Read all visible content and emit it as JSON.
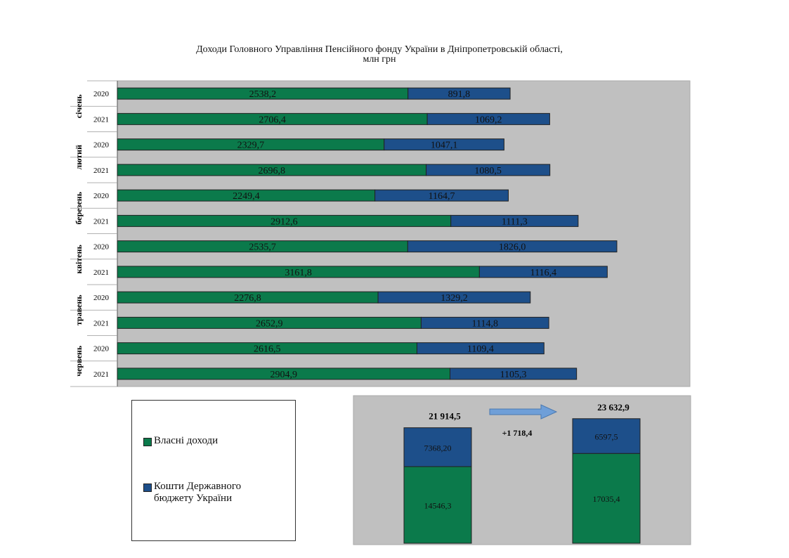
{
  "chart_data": [
    {
      "type": "bar",
      "orientation": "horizontal",
      "stacked": true,
      "title": "Доходи Головного Управління Пенсійного фонду України в Дніпропетровській області,",
      "subtitle": "млн грн",
      "months": [
        "січень",
        "лютий",
        "березень",
        "квітень",
        "травень",
        "червень"
      ],
      "years": [
        "2020",
        "2021"
      ],
      "xlim": [
        0,
        5000
      ],
      "grid": false,
      "colors": {
        "own": "#0b7a4b",
        "budget": "#1d4f8a",
        "plot_bg": "#c0c0c0"
      },
      "series": [
        {
          "name": "Власні доходи",
          "values": [
            2538.2,
            2706.4,
            2329.7,
            2696.8,
            2249.4,
            2912.6,
            2535.7,
            3161.8,
            2276.8,
            2652.9,
            2616.5,
            2904.9
          ],
          "labels": [
            "2538,2",
            "2706,4",
            "2329,7",
            "2696,8",
            "2249,4",
            "2912,6",
            "2535,7",
            "3161,8",
            "2276,8",
            "2652,9",
            "2616,5",
            "2904,9"
          ]
        },
        {
          "name": "Кошти Державного бюджету України",
          "values": [
            891.8,
            1069.2,
            1047.1,
            1080.5,
            1164.7,
            1111.3,
            1826.0,
            1116.4,
            1329.2,
            1114.8,
            1109.4,
            1105.3
          ],
          "labels": [
            "891,8",
            "1069,2",
            "1047,1",
            "1080,5",
            "1164,7",
            "1111,3",
            "1826,0",
            "1116,4",
            "1329,2",
            "1114,8",
            "1109,4",
            "1105,3"
          ]
        }
      ]
    },
    {
      "type": "bar",
      "stacked": true,
      "ylim": [
        0,
        28000
      ],
      "series": [
        {
          "name": "Власні доходи",
          "values": [
            14546.3,
            17035.4
          ],
          "labels": [
            "14546,3",
            "17035,4"
          ]
        },
        {
          "name": "Кошти Державного бюджету України",
          "values": [
            7368.2,
            6597.5
          ],
          "labels": [
            "7368,20",
            "6597,5"
          ]
        }
      ],
      "totals": [
        "21 914,5",
        "23 632,9"
      ],
      "difference": "+1 718,4",
      "arrow_color": "#6f9fd8"
    }
  ],
  "legend": {
    "items": [
      "Власні доходи",
      "Кошти Державного бюджету України"
    ],
    "lines": [
      [
        "Власні доходи"
      ],
      [
        "Кошти Державного",
        "бюджету України"
      ]
    ]
  }
}
